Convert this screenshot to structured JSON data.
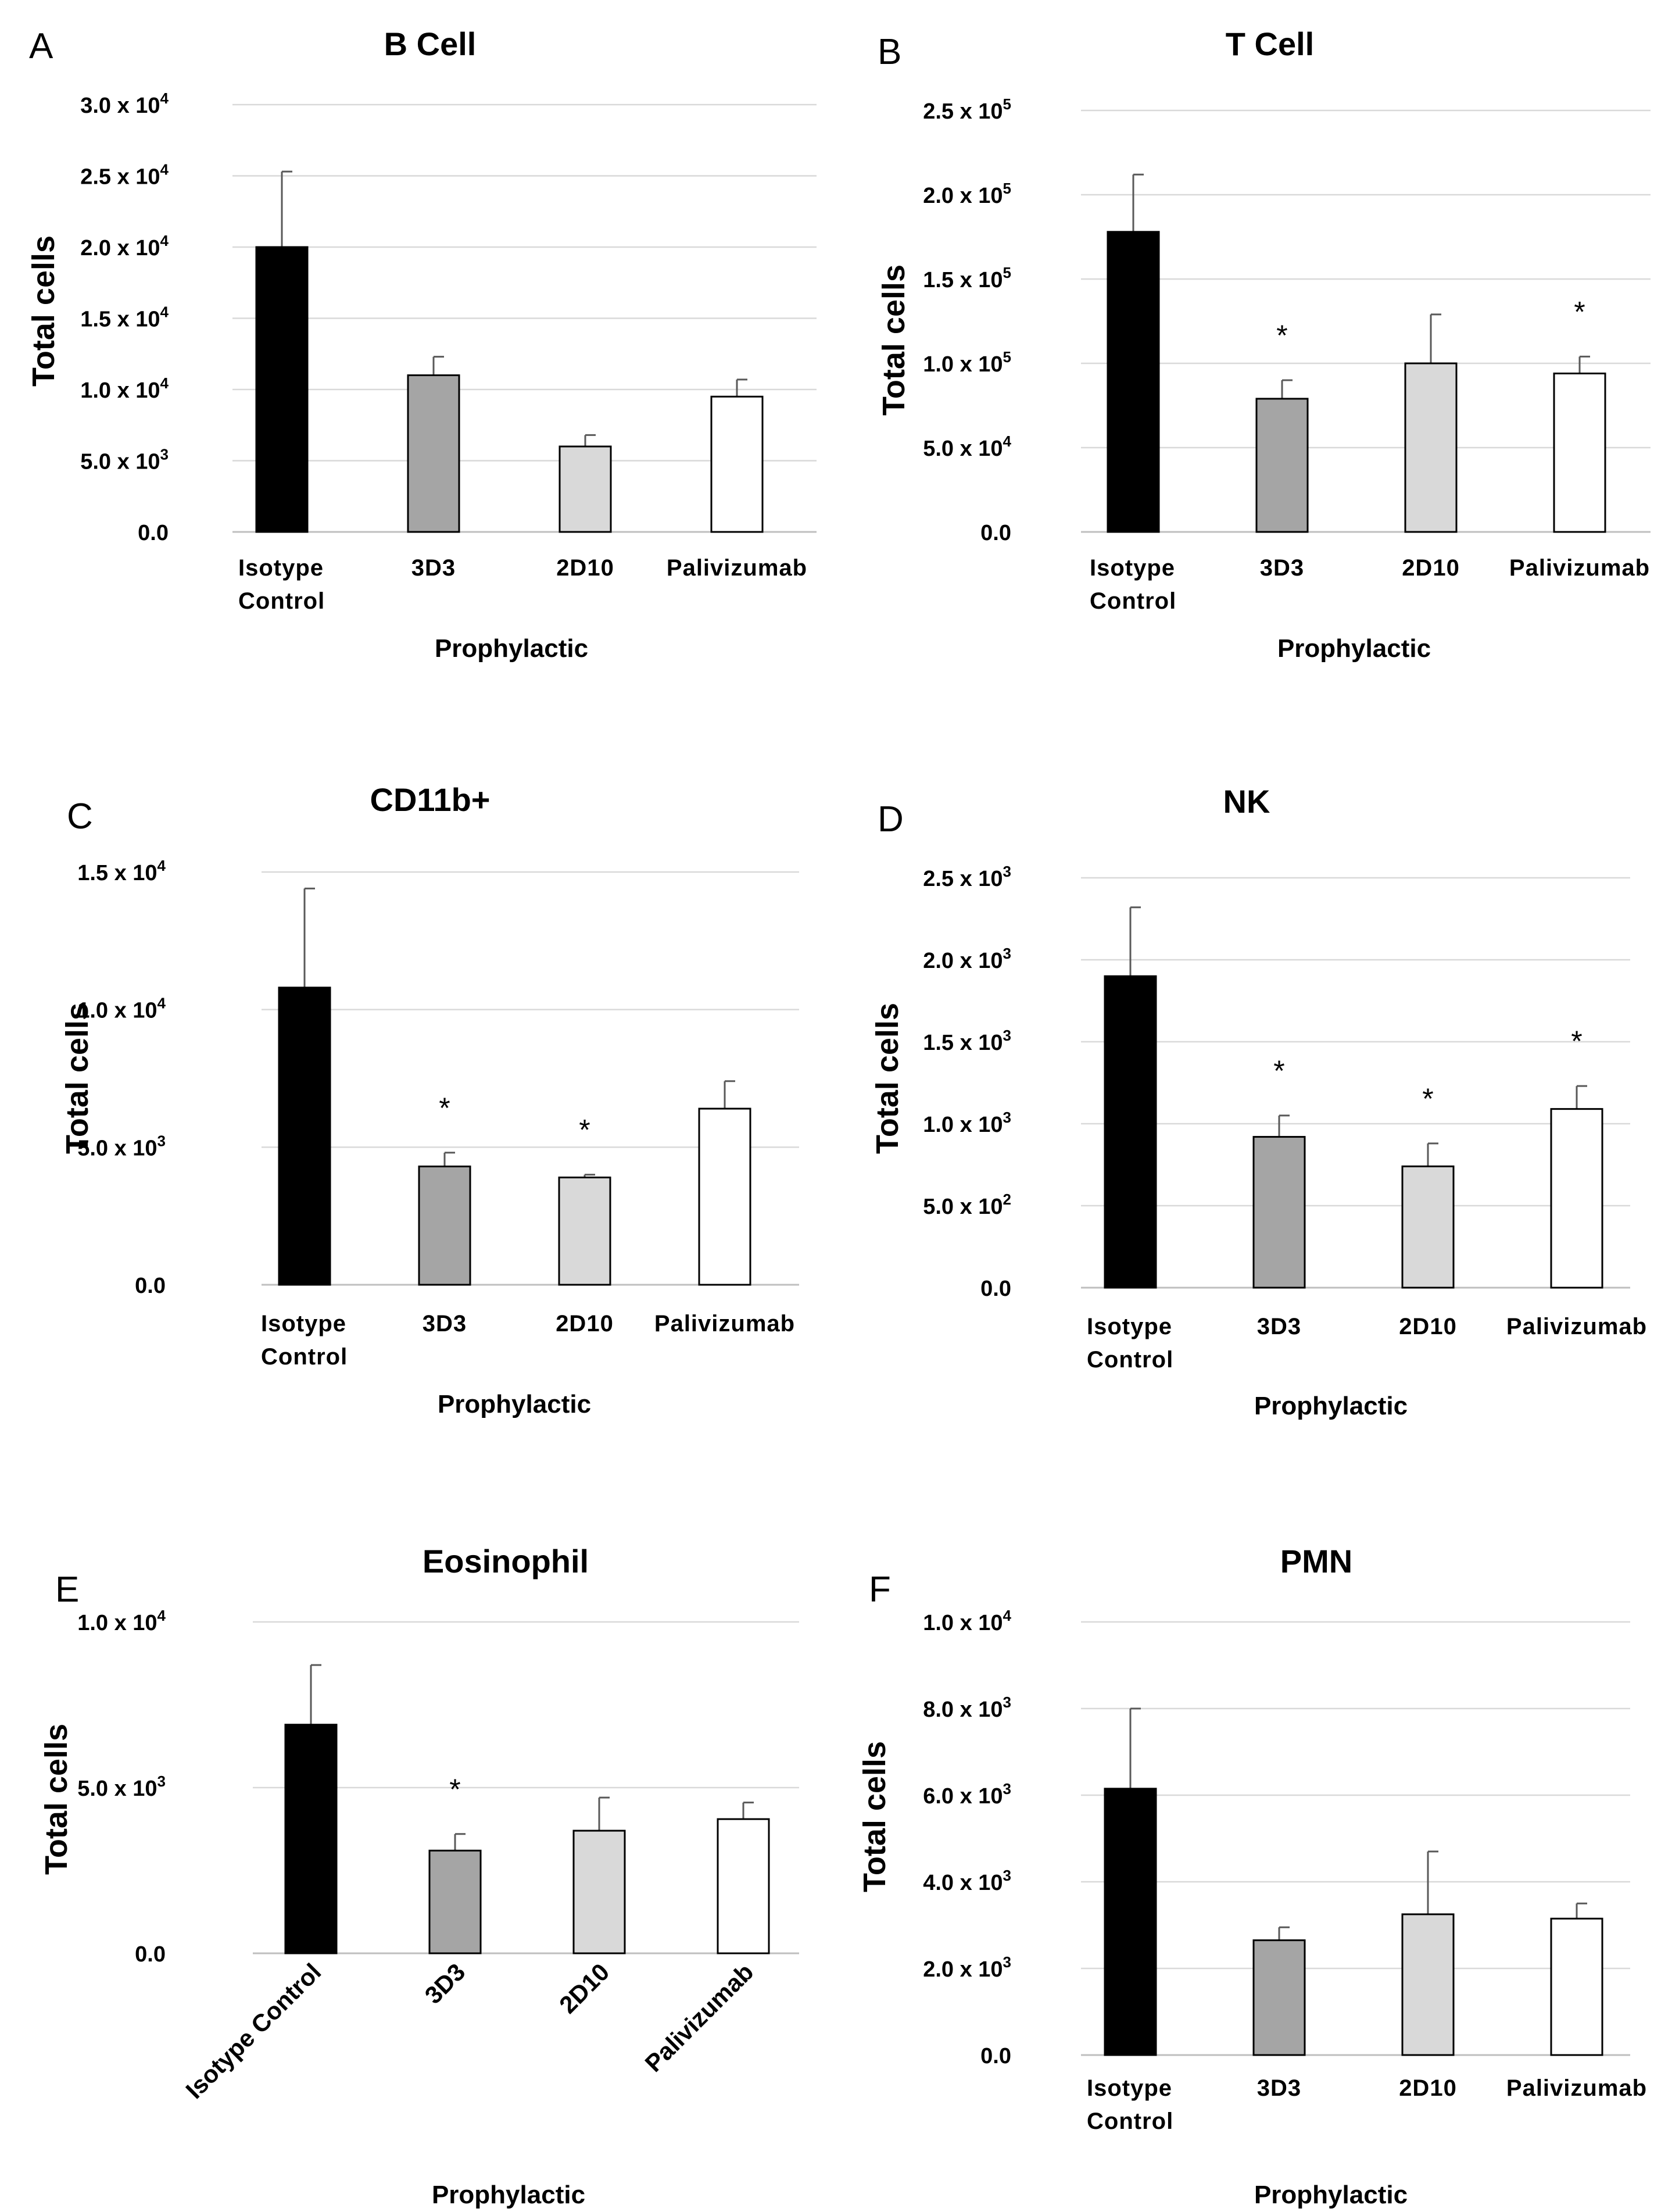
{
  "colors": {
    "black": "#000000",
    "dark_gray": "#a5a5a5",
    "light_gray": "#d9d9d9",
    "white": "#ffffff",
    "grid": "#d9d9d9",
    "error_bar": "#595959"
  },
  "chart_data": [
    {
      "panel": "A",
      "type": "bar",
      "title": "B Cell",
      "xlabel": "Prophylactic",
      "ylabel": "Total cells",
      "categories": [
        [
          "Isotype",
          "Control"
        ],
        [
          "3D3"
        ],
        [
          "2D10"
        ],
        [
          "Palivizumab"
        ]
      ],
      "values": [
        20000,
        11000,
        6000,
        9500
      ],
      "errors": [
        5300,
        1300,
        800,
        1200
      ],
      "significant": [
        false,
        false,
        false,
        false
      ],
      "ylim": [
        0,
        30000
      ],
      "yticks": [
        {
          "v": 0,
          "m": "0.0",
          "e": ""
        },
        {
          "v": 5000,
          "m": "5.0 x 10",
          "e": "3"
        },
        {
          "v": 10000,
          "m": "1.0 x 10",
          "e": "4"
        },
        {
          "v": 15000,
          "m": "1.5 x 10",
          "e": "4"
        },
        {
          "v": 20000,
          "m": "2.0 x 10",
          "e": "4"
        },
        {
          "v": 25000,
          "m": "2.5 x 10",
          "e": "4"
        },
        {
          "v": 30000,
          "m": "3.0 x 10",
          "e": "4"
        }
      ],
      "grid": true,
      "legend": "none"
    },
    {
      "panel": "B",
      "type": "bar",
      "title": "T Cell",
      "xlabel": "Prophylactic",
      "ylabel": "Total cells",
      "categories": [
        [
          "Isotype",
          "Control"
        ],
        [
          "3D3"
        ],
        [
          "2D10"
        ],
        [
          "Palivizumab"
        ]
      ],
      "values": [
        178000,
        79000,
        100000,
        94000
      ],
      "errors": [
        34000,
        11000,
        29000,
        10000
      ],
      "significant": [
        false,
        true,
        false,
        true
      ],
      "ylim": [
        0,
        250000
      ],
      "yticks": [
        {
          "v": 0,
          "m": "0.0",
          "e": ""
        },
        {
          "v": 50000,
          "m": "5.0 x 10",
          "e": "4"
        },
        {
          "v": 100000,
          "m": "1.0 x 10",
          "e": "5"
        },
        {
          "v": 150000,
          "m": "1.5 x 10",
          "e": "5"
        },
        {
          "v": 200000,
          "m": "2.0 x 10",
          "e": "5"
        },
        {
          "v": 250000,
          "m": "2.5 x 10",
          "e": "5"
        }
      ],
      "grid": true,
      "legend": "none"
    },
    {
      "panel": "C",
      "type": "bar",
      "title": "CD11b+",
      "xlabel": "Prophylactic",
      "ylabel": "Total cells",
      "categories": [
        [
          "Isotype",
          "Control"
        ],
        [
          "3D3"
        ],
        [
          "2D10"
        ],
        [
          "Palivizumab"
        ]
      ],
      "values": [
        10800,
        4300,
        3900,
        6400
      ],
      "errors": [
        3600,
        500,
        100,
        1000
      ],
      "significant": [
        false,
        true,
        true,
        false
      ],
      "ylim": [
        0,
        15000
      ],
      "yticks": [
        {
          "v": 0,
          "m": "0.0",
          "e": ""
        },
        {
          "v": 5000,
          "m": "5.0 x 10",
          "e": "3"
        },
        {
          "v": 10000,
          "m": "1.0 x 10",
          "e": "4"
        },
        {
          "v": 15000,
          "m": "1.5 x 10",
          "e": "4"
        }
      ],
      "grid": true,
      "legend": "none"
    },
    {
      "panel": "D",
      "type": "bar",
      "title": "NK",
      "xlabel": "Prophylactic",
      "ylabel": "Total cells",
      "categories": [
        [
          "Isotype",
          "Control"
        ],
        [
          "3D3"
        ],
        [
          "2D10"
        ],
        [
          "Palivizumab"
        ]
      ],
      "values": [
        1900,
        920,
        740,
        1090
      ],
      "errors": [
        420,
        130,
        140,
        140
      ],
      "significant": [
        false,
        true,
        true,
        true
      ],
      "ylim": [
        0,
        2500
      ],
      "yticks": [
        {
          "v": 0,
          "m": "0.0",
          "e": ""
        },
        {
          "v": 500,
          "m": "5.0 x 10",
          "e": "2"
        },
        {
          "v": 1000,
          "m": "1.0 x 10",
          "e": "3"
        },
        {
          "v": 1500,
          "m": "1.5 x 10",
          "e": "3"
        },
        {
          "v": 2000,
          "m": "2.0 x 10",
          "e": "3"
        },
        {
          "v": 2500,
          "m": "2.5 x 10",
          "e": "3"
        }
      ],
      "grid": true,
      "legend": "none"
    },
    {
      "panel": "E",
      "type": "bar",
      "title": "Eosinophil",
      "xlabel": "Prophylactic",
      "ylabel": "Total cells",
      "categories": [
        [
          "Isotype Control"
        ],
        [
          "3D3"
        ],
        [
          "2D10"
        ],
        [
          "Palivizumab"
        ]
      ],
      "values": [
        6900,
        3100,
        3700,
        4050
      ],
      "errors": [
        1800,
        500,
        1000,
        500
      ],
      "significant": [
        false,
        true,
        false,
        false
      ],
      "ylim": [
        0,
        10000
      ],
      "yticks": [
        {
          "v": 0,
          "m": "0.0",
          "e": ""
        },
        {
          "v": 5000,
          "m": "5.0 x 10",
          "e": "3"
        },
        {
          "v": 10000,
          "m": "1.0 x 10",
          "e": "4"
        }
      ],
      "grid": true,
      "legend": "none"
    },
    {
      "panel": "F",
      "type": "bar",
      "title": "PMN",
      "xlabel": "Prophylactic",
      "ylabel": "Total cells",
      "categories": [
        [
          "Isotype",
          "Control"
        ],
        [
          "3D3"
        ],
        [
          "2D10"
        ],
        [
          "Palivizumab"
        ]
      ],
      "values": [
        6150,
        2650,
        3250,
        3150
      ],
      "errors": [
        1850,
        300,
        1450,
        350
      ],
      "significant": [
        false,
        false,
        false,
        false
      ],
      "ylim": [
        0,
        10000
      ],
      "yticks": [
        {
          "v": 0,
          "m": "0.0",
          "e": ""
        },
        {
          "v": 2000,
          "m": "2.0 x 10",
          "e": "3"
        },
        {
          "v": 4000,
          "m": "4.0 x 10",
          "e": "3"
        },
        {
          "v": 6000,
          "m": "6.0 x 10",
          "e": "3"
        },
        {
          "v": 8000,
          "m": "8.0 x 10",
          "e": "3"
        },
        {
          "v": 10000,
          "m": "1.0 x 10",
          "e": "4"
        }
      ],
      "grid": true,
      "legend": "none"
    }
  ]
}
